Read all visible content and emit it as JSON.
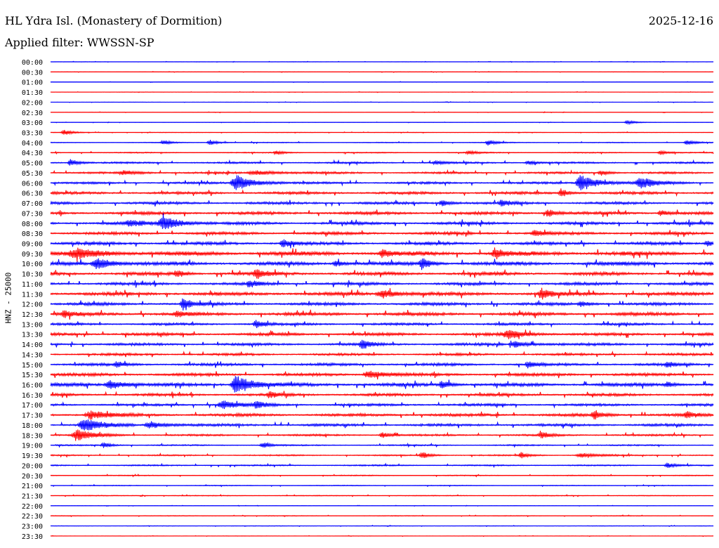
{
  "header": {
    "station_title": "HL Ydra Isl. (Monastery of Dormition)",
    "date": "2025-12-16",
    "filter_text": "Applied filter: WWSSN-SP"
  },
  "channel_label": "HNZ - 25000",
  "chart_data": {
    "type": "line",
    "title": "HL Ydra Isl. (Monastery of Dormition)",
    "ylabel": "HNZ - 25000",
    "colors": {
      "even_trace": "#0000ff",
      "odd_trace": "#ff0000"
    },
    "series": [
      {
        "label": "00:00",
        "noise": 0.3,
        "events": []
      },
      {
        "label": "00:30",
        "noise": 0.3,
        "events": []
      },
      {
        "label": "01:00",
        "noise": 0.3,
        "events": []
      },
      {
        "label": "01:30",
        "noise": 0.3,
        "events": []
      },
      {
        "label": "02:00",
        "noise": 0.3,
        "events": []
      },
      {
        "label": "02:30",
        "noise": 0.3,
        "events": []
      },
      {
        "label": "03:00",
        "noise": 0.3,
        "events": [
          [
            0.87,
            3,
            0.01
          ]
        ]
      },
      {
        "label": "03:30",
        "noise": 0.4,
        "events": [
          [
            0.02,
            4,
            0.01
          ]
        ]
      },
      {
        "label": "04:00",
        "noise": 0.6,
        "events": [
          [
            0.17,
            3,
            0.01
          ],
          [
            0.24,
            4,
            0.01
          ],
          [
            0.66,
            4,
            0.01
          ],
          [
            0.96,
            4,
            0.01
          ]
        ]
      },
      {
        "label": "04:30",
        "noise": 0.8,
        "events": [
          [
            0.34,
            3,
            0.01
          ],
          [
            0.63,
            3,
            0.01
          ],
          [
            0.92,
            3,
            0.01
          ]
        ]
      },
      {
        "label": "05:00",
        "noise": 1.3,
        "events": [
          [
            0.03,
            5,
            0.01
          ],
          [
            0.58,
            3,
            0.01
          ],
          [
            0.72,
            3,
            0.01
          ]
        ]
      },
      {
        "label": "05:30",
        "noise": 1.5,
        "events": [
          [
            0.11,
            3,
            0.02
          ],
          [
            0.31,
            3,
            0.03
          ],
          [
            0.83,
            4,
            0.01
          ]
        ]
      },
      {
        "label": "06:00",
        "noise": 1.6,
        "events": [
          [
            0.28,
            12,
            0.02
          ],
          [
            0.8,
            12,
            0.02
          ],
          [
            0.89,
            8,
            0.02
          ]
        ]
      },
      {
        "label": "06:30",
        "noise": 2.0,
        "events": [
          [
            0.77,
            6,
            0.01
          ]
        ]
      },
      {
        "label": "07:00",
        "noise": 2.0,
        "events": [
          [
            0.59,
            5,
            0.01
          ],
          [
            0.68,
            5,
            0.01
          ]
        ]
      },
      {
        "label": "07:30",
        "noise": 2.2,
        "events": [
          [
            0.75,
            6,
            0.01
          ],
          [
            0.92,
            4,
            0.01
          ]
        ]
      },
      {
        "label": "08:00",
        "noise": 2.2,
        "events": [
          [
            0.17,
            10,
            0.02
          ],
          [
            0.12,
            4,
            0.02
          ]
        ]
      },
      {
        "label": "08:30",
        "noise": 2.2,
        "events": [
          [
            0.73,
            5,
            0.01
          ]
        ]
      },
      {
        "label": "09:00",
        "noise": 2.3,
        "events": [
          [
            0.35,
            6,
            0.01
          ],
          [
            0.99,
            4,
            0.01
          ]
        ]
      },
      {
        "label": "09:30",
        "noise": 3.2,
        "events": [
          [
            0.04,
            6,
            0.03
          ],
          [
            0.5,
            6,
            0.01
          ],
          [
            0.67,
            8,
            0.01
          ]
        ]
      },
      {
        "label": "10:00",
        "noise": 2.8,
        "events": [
          [
            0.07,
            8,
            0.02
          ],
          [
            0.56,
            8,
            0.01
          ],
          [
            0.43,
            5,
            0.01
          ]
        ]
      },
      {
        "label": "10:30",
        "noise": 2.5,
        "events": [
          [
            0.31,
            7,
            0.01
          ],
          [
            0.19,
            5,
            0.01
          ]
        ]
      },
      {
        "label": "11:00",
        "noise": 2.2,
        "events": [
          [
            0.3,
            5,
            0.01
          ]
        ]
      },
      {
        "label": "11:30",
        "noise": 2.6,
        "events": [
          [
            0.5,
            6,
            0.02
          ],
          [
            0.74,
            9,
            0.01
          ]
        ]
      },
      {
        "label": "12:00",
        "noise": 2.2,
        "events": [
          [
            0.2,
            9,
            0.01
          ],
          [
            0.8,
            4,
            0.01
          ]
        ]
      },
      {
        "label": "12:30",
        "noise": 2.5,
        "events": [
          [
            0.02,
            5,
            0.01
          ],
          [
            0.19,
            4,
            0.01
          ]
        ]
      },
      {
        "label": "13:00",
        "noise": 1.8,
        "events": [
          [
            0.31,
            6,
            0.01
          ]
        ]
      },
      {
        "label": "13:30",
        "noise": 2.2,
        "events": [
          [
            0.69,
            6,
            0.02
          ]
        ]
      },
      {
        "label": "14:00",
        "noise": 2.0,
        "events": [
          [
            0.47,
            7,
            0.01
          ],
          [
            0.7,
            4,
            0.02
          ]
        ]
      },
      {
        "label": "14:30",
        "noise": 1.8,
        "events": []
      },
      {
        "label": "15:00",
        "noise": 2.0,
        "events": [
          [
            0.1,
            4,
            0.01
          ],
          [
            0.72,
            5,
            0.01
          ],
          [
            0.93,
            4,
            0.01
          ]
        ]
      },
      {
        "label": "15:30",
        "noise": 2.2,
        "events": [
          [
            0.48,
            6,
            0.02
          ]
        ]
      },
      {
        "label": "16:00",
        "noise": 2.5,
        "events": [
          [
            0.09,
            6,
            0.02
          ],
          [
            0.28,
            14,
            0.02
          ],
          [
            0.59,
            6,
            0.01
          ],
          [
            0.93,
            4,
            0.01
          ]
        ]
      },
      {
        "label": "16:30",
        "noise": 2.0,
        "events": [
          [
            0.33,
            5,
            0.01
          ]
        ]
      },
      {
        "label": "17:00",
        "noise": 1.8,
        "events": [
          [
            0.26,
            6,
            0.02
          ],
          [
            0.31,
            5,
            0.01
          ]
        ]
      },
      {
        "label": "17:30",
        "noise": 2.2,
        "events": [
          [
            0.06,
            6,
            0.02
          ],
          [
            0.82,
            7,
            0.01
          ],
          [
            0.96,
            5,
            0.01
          ]
        ]
      },
      {
        "label": "18:00",
        "noise": 2.0,
        "events": [
          [
            0.05,
            10,
            0.02
          ],
          [
            0.15,
            5,
            0.02
          ]
        ]
      },
      {
        "label": "18:30",
        "noise": 1.4,
        "events": [
          [
            0.04,
            8,
            0.02
          ],
          [
            0.74,
            5,
            0.01
          ],
          [
            0.5,
            4,
            0.01
          ]
        ]
      },
      {
        "label": "19:00",
        "noise": 1.0,
        "events": [
          [
            0.08,
            4,
            0.01
          ],
          [
            0.32,
            4,
            0.01
          ]
        ]
      },
      {
        "label": "19:30",
        "noise": 1.0,
        "events": [
          [
            0.56,
            5,
            0.01
          ],
          [
            0.71,
            4,
            0.01
          ],
          [
            0.8,
            3,
            0.02
          ]
        ]
      },
      {
        "label": "20:00",
        "noise": 1.0,
        "events": [
          [
            0.93,
            4,
            0.01
          ]
        ]
      },
      {
        "label": "20:30",
        "noise": 0.7,
        "events": []
      },
      {
        "label": "21:00",
        "noise": 0.6,
        "events": []
      },
      {
        "label": "21:30",
        "noise": 0.6,
        "events": []
      },
      {
        "label": "22:00",
        "noise": 0.3,
        "events": []
      },
      {
        "label": "22:30",
        "noise": 0.5,
        "events": []
      },
      {
        "label": "23:00",
        "noise": 0.4,
        "events": []
      },
      {
        "label": "23:30",
        "noise": 0.3,
        "events": []
      }
    ]
  }
}
